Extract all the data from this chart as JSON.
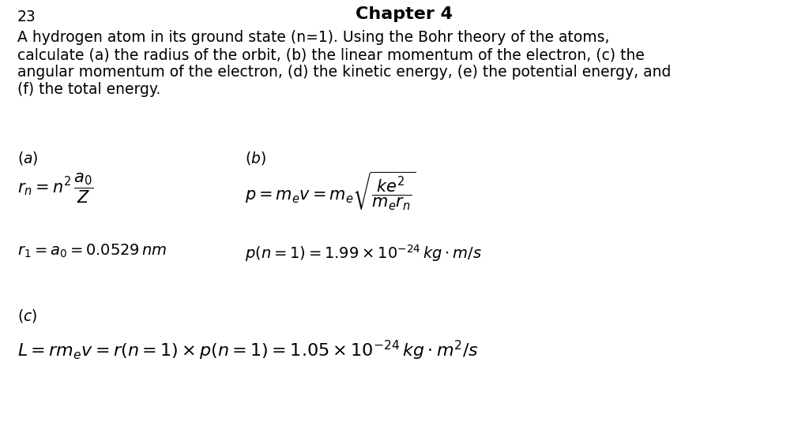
{
  "title": "Chapter 4",
  "page_number": "23",
  "problem_line1": "A hydrogen atom in its ground state (n=1). Using the Bohr theory of the atoms,",
  "problem_line2": "calculate (a) the radius of the orbit, (b) the linear momentum of the electron, (c) the",
  "problem_line3": "angular momentum of the electron, (d) the kinetic energy, (e) the potential energy, and",
  "problem_line4": "(f) the total energy.",
  "background_color": "#ffffff",
  "text_color": "#000000",
  "fig_width": 10.24,
  "fig_height": 5.63,
  "dpi": 100
}
